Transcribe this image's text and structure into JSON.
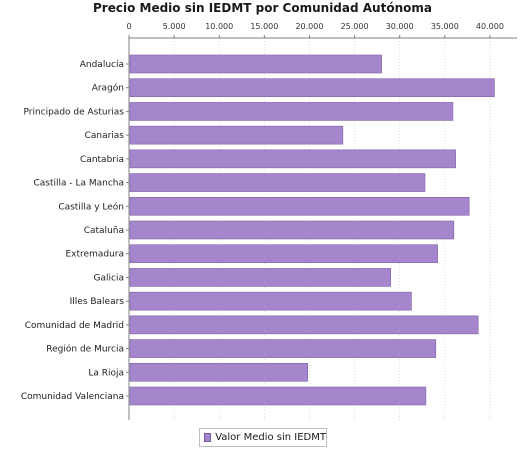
{
  "colors": {
    "bar": "#a585cc",
    "bar_stroke": "#7e63a3",
    "grid": "#c8c8c8",
    "axis": "#808080"
  },
  "chart_data": {
    "type": "bar",
    "orientation": "horizontal",
    "title": "Precio Medio sin IEDMT por Comunidad Autónoma",
    "xlabel": "",
    "ylabel": "",
    "xlim": [
      0,
      43000
    ],
    "x_ticks": [
      0,
      5000,
      10000,
      15000,
      20000,
      25000,
      30000,
      35000,
      40000
    ],
    "x_tick_labels": [
      "0",
      "5.000",
      "10.000",
      "15.000",
      "20.000",
      "25.000",
      "30.000",
      "35.000",
      "40.000"
    ],
    "categories": [
      "Andalucía",
      "Aragón",
      "Principado de Asturias",
      "Canarias",
      "Cantabria",
      "Castilla - La Mancha",
      "Castilla y León",
      "Cataluña",
      "Extremadura",
      "Galicia",
      "Illes Balears",
      "Comunidad de Madrid",
      "Región de Murcia",
      "La Rioja",
      "Comunidad Valenciana"
    ],
    "series": [
      {
        "name": "Valor Medio sin IEDMT",
        "values": [
          28000,
          40500,
          35900,
          23700,
          36200,
          32800,
          37700,
          36000,
          34200,
          29000,
          31300,
          38700,
          34000,
          19800,
          32900
        ]
      }
    ],
    "grid": true,
    "legend_position": "bottom"
  }
}
